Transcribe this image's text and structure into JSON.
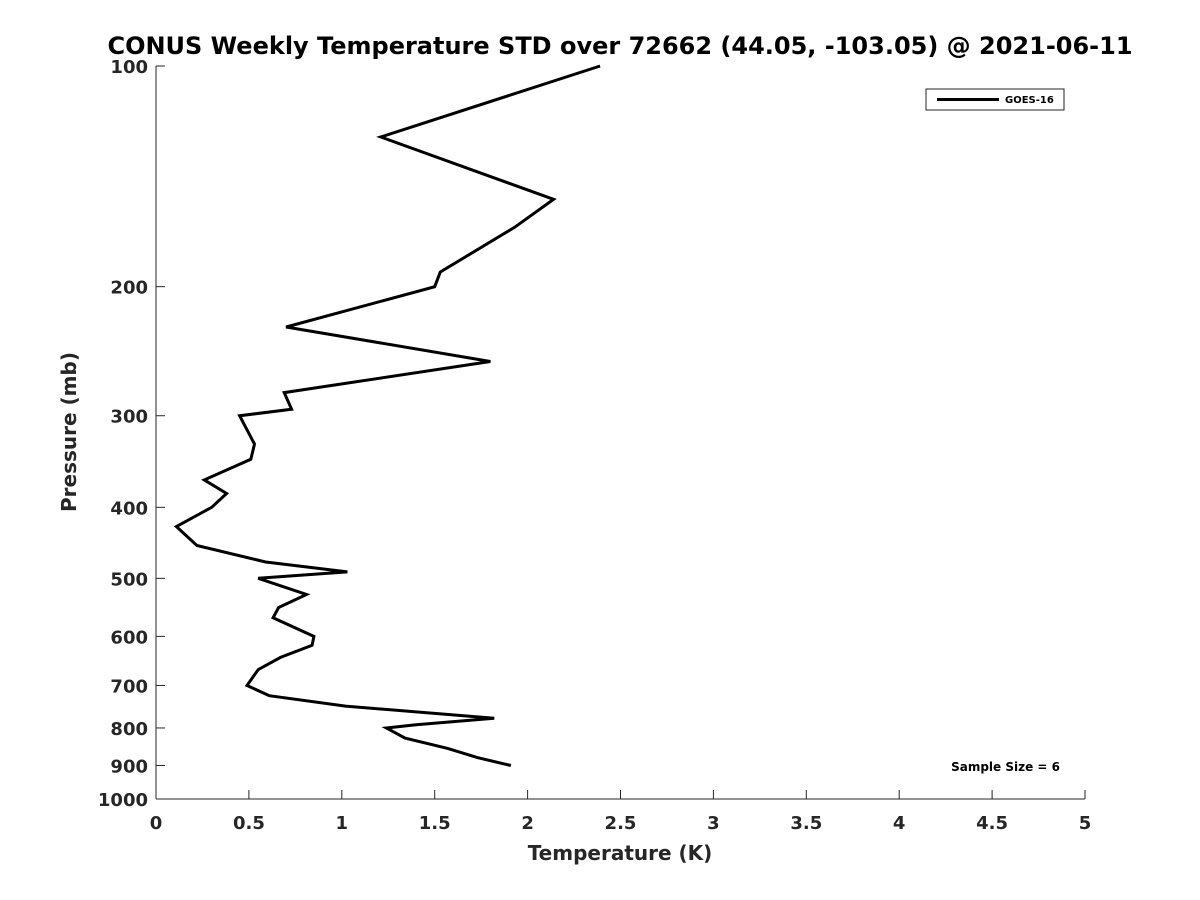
{
  "chart_data": {
    "type": "line",
    "title": "CONUS Weekly Temperature STD over 72662 (44.05, -103.05) @ 2021-06-11",
    "xlabel": "Temperature (K)",
    "ylabel": "Pressure (mb)",
    "xlim": [
      0,
      5
    ],
    "ylim": [
      1000,
      100
    ],
    "y_scale": "log",
    "y_reversed": true,
    "grid": false,
    "legend_position": "top-right",
    "x_ticks": [
      "0",
      "0.5",
      "1",
      "1.5",
      "2",
      "2.5",
      "3",
      "3.5",
      "4",
      "4.5",
      "5"
    ],
    "y_ticks": [
      "100",
      "200",
      "300",
      "400",
      "500",
      "600",
      "700",
      "800",
      "900",
      "1000"
    ],
    "line_color": "#000000",
    "series": [
      {
        "name": "GOES-16",
        "points": [
          {
            "x": 2.39,
            "y": 100
          },
          {
            "x": 1.21,
            "y": 125
          },
          {
            "x": 2.14,
            "y": 152
          },
          {
            "x": 1.93,
            "y": 166
          },
          {
            "x": 1.53,
            "y": 191
          },
          {
            "x": 1.5,
            "y": 200
          },
          {
            "x": 0.7,
            "y": 227
          },
          {
            "x": 1.8,
            "y": 253
          },
          {
            "x": 0.69,
            "y": 279
          },
          {
            "x": 0.73,
            "y": 294
          },
          {
            "x": 0.45,
            "y": 300
          },
          {
            "x": 0.53,
            "y": 328
          },
          {
            "x": 0.51,
            "y": 344
          },
          {
            "x": 0.26,
            "y": 367
          },
          {
            "x": 0.38,
            "y": 383
          },
          {
            "x": 0.3,
            "y": 400
          },
          {
            "x": 0.11,
            "y": 425
          },
          {
            "x": 0.22,
            "y": 451
          },
          {
            "x": 0.59,
            "y": 475
          },
          {
            "x": 1.03,
            "y": 490
          },
          {
            "x": 0.55,
            "y": 500
          },
          {
            "x": 0.81,
            "y": 526
          },
          {
            "x": 0.66,
            "y": 548
          },
          {
            "x": 0.63,
            "y": 566
          },
          {
            "x": 0.85,
            "y": 600
          },
          {
            "x": 0.84,
            "y": 617
          },
          {
            "x": 0.67,
            "y": 641
          },
          {
            "x": 0.55,
            "y": 666
          },
          {
            "x": 0.49,
            "y": 700
          },
          {
            "x": 0.61,
            "y": 723
          },
          {
            "x": 1.02,
            "y": 747
          },
          {
            "x": 1.82,
            "y": 776
          },
          {
            "x": 1.4,
            "y": 792
          },
          {
            "x": 1.24,
            "y": 800
          },
          {
            "x": 1.34,
            "y": 826
          },
          {
            "x": 1.57,
            "y": 853
          },
          {
            "x": 1.73,
            "y": 878
          },
          {
            "x": 1.91,
            "y": 900
          }
        ]
      }
    ],
    "annotations": [
      {
        "text": "Sample Size = 6",
        "position": "bottom-right"
      }
    ]
  }
}
